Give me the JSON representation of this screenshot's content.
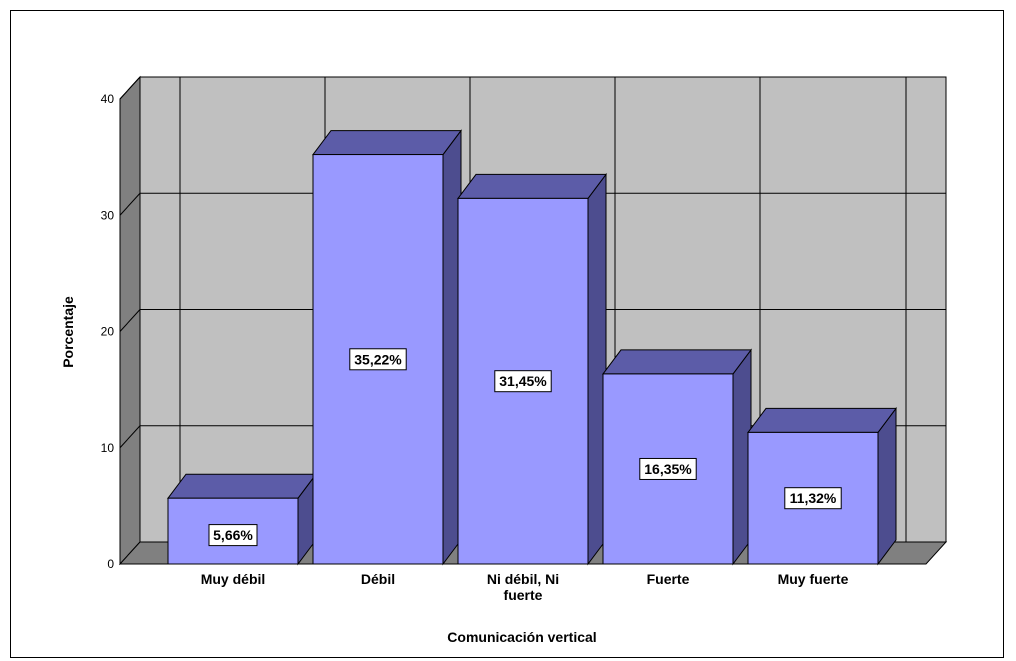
{
  "chart_data": {
    "type": "bar",
    "title": "",
    "xlabel": "Comunicación vertical",
    "ylabel": "Porcentaje",
    "categories": [
      "Muy débil",
      "Débil",
      "Ni débil, Ni fuerte",
      "Fuerte",
      "Muy fuerte"
    ],
    "category_lines": [
      [
        "Muy débil"
      ],
      [
        "Débil"
      ],
      [
        "Ni débil, Ni",
        "fuerte"
      ],
      [
        "Fuerte"
      ],
      [
        "Muy fuerte"
      ]
    ],
    "values": [
      5.66,
      35.22,
      31.45,
      16.35,
      11.32
    ],
    "data_labels": [
      "5,66%",
      "35,22%",
      "31,45%",
      "16,35%",
      "11,32%"
    ],
    "yticks": [
      "0",
      "10",
      "20",
      "30",
      "40"
    ],
    "ylim": [
      0,
      40
    ],
    "grid": true,
    "legend": "none",
    "three_d": true,
    "colors": {
      "bar_front": "#9999ff",
      "bar_top": "#5c5ca8",
      "bar_side": "#4d4d8f",
      "wall": "#c0c0c0",
      "side_wall": "#808080",
      "floor": "#808080"
    }
  }
}
